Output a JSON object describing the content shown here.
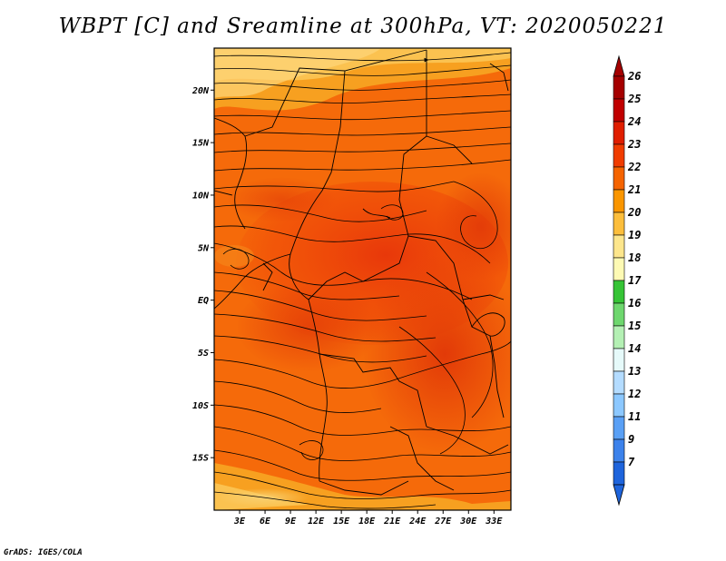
{
  "title": "WBPT [C] and Sreamline at 300hPa, VT: 2020050221",
  "footer": "GrADS: IGES/COLA",
  "map": {
    "lon_range": [
      0,
      35
    ],
    "lat_range": [
      -20,
      24
    ],
    "lat_ticks": [
      {
        "value": 20,
        "label": "20N"
      },
      {
        "value": 15,
        "label": "15N"
      },
      {
        "value": 10,
        "label": "10N"
      },
      {
        "value": 5,
        "label": "5N"
      },
      {
        "value": 0,
        "label": "EQ"
      },
      {
        "value": -5,
        "label": "5S"
      },
      {
        "value": -10,
        "label": "10S"
      },
      {
        "value": -15,
        "label": "15S"
      }
    ],
    "lon_ticks": [
      {
        "value": 3,
        "label": "3E"
      },
      {
        "value": 6,
        "label": "6E"
      },
      {
        "value": 9,
        "label": "9E"
      },
      {
        "value": 12,
        "label": "12E"
      },
      {
        "value": 15,
        "label": "15E"
      },
      {
        "value": 18,
        "label": "18E"
      },
      {
        "value": 21,
        "label": "21E"
      },
      {
        "value": 24,
        "label": "24E"
      },
      {
        "value": 27,
        "label": "27E"
      },
      {
        "value": 30,
        "label": "30E"
      },
      {
        "value": 33,
        "label": "33E"
      }
    ]
  },
  "colorbar": {
    "levels": [
      {
        "label": "26",
        "color": "#a50000"
      },
      {
        "label": "25",
        "color": "#c00000"
      },
      {
        "label": "24",
        "color": "#e01e00"
      },
      {
        "label": "23",
        "color": "#f03c00"
      },
      {
        "label": "22",
        "color": "#f56400"
      },
      {
        "label": "21",
        "color": "#fa9600"
      },
      {
        "label": "20",
        "color": "#fcbe3c"
      },
      {
        "label": "19",
        "color": "#fde68c"
      },
      {
        "label": "18",
        "color": "#fefab4"
      },
      {
        "label": "17",
        "color": "#36c436"
      },
      {
        "label": "16",
        "color": "#6ed76e"
      },
      {
        "label": "15",
        "color": "#b4f0b4"
      },
      {
        "label": "14",
        "color": "#e6fafa"
      },
      {
        "label": "13",
        "color": "#b4dcff"
      },
      {
        "label": "12",
        "color": "#8cc8ff"
      },
      {
        "label": "11",
        "color": "#5aa0f5"
      },
      {
        "label": "9",
        "color": "#3c82eb"
      },
      {
        "label": "7",
        "color": "#1e64dc"
      }
    ],
    "top_arrow_color": "#a50000",
    "bottom_arrow_color": "#1e64dc"
  }
}
